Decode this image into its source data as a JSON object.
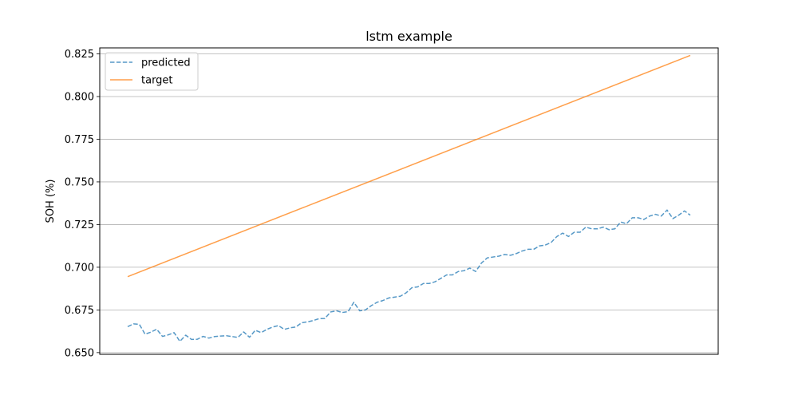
{
  "chart_data": {
    "type": "line",
    "title": "lstm example",
    "xlabel": "",
    "ylabel": "SOH (%)",
    "ylim": [
      0.649,
      0.8285
    ],
    "yticks": [
      0.65,
      0.675,
      0.7,
      0.725,
      0.75,
      0.775,
      0.8,
      0.825
    ],
    "ytick_labels": [
      "0.650",
      "0.675",
      "0.700",
      "0.725",
      "0.750",
      "0.775",
      "0.800",
      "0.825"
    ],
    "grid": "horizontal",
    "legend_position": "top-left",
    "series": [
      {
        "name": "predicted",
        "color": "#1f77b4",
        "style": "dashed",
        "values": [
          0.6652,
          0.6668,
          0.6666,
          0.6608,
          0.662,
          0.6637,
          0.6595,
          0.6604,
          0.6617,
          0.6566,
          0.6602,
          0.6577,
          0.6578,
          0.6595,
          0.6585,
          0.6594,
          0.6597,
          0.6599,
          0.6594,
          0.6589,
          0.6621,
          0.659,
          0.6631,
          0.6617,
          0.6636,
          0.665,
          0.6658,
          0.6636,
          0.6645,
          0.665,
          0.6675,
          0.668,
          0.6688,
          0.6699,
          0.67,
          0.6738,
          0.6745,
          0.6735,
          0.674,
          0.6795,
          0.6745,
          0.675,
          0.6775,
          0.6795,
          0.6805,
          0.682,
          0.6825,
          0.683,
          0.685,
          0.688,
          0.6885,
          0.6905,
          0.6905,
          0.6915,
          0.6935,
          0.6955,
          0.6955,
          0.6975,
          0.698,
          0.6995,
          0.6975,
          0.7025,
          0.7055,
          0.706,
          0.7065,
          0.7075,
          0.707,
          0.708,
          0.7095,
          0.7105,
          0.7105,
          0.7125,
          0.713,
          0.7145,
          0.718,
          0.72,
          0.718,
          0.7205,
          0.7205,
          0.7235,
          0.7225,
          0.7225,
          0.7235,
          0.722,
          0.7225,
          0.7265,
          0.7255,
          0.729,
          0.729,
          0.728,
          0.73,
          0.731,
          0.73,
          0.7335,
          0.7285,
          0.7305,
          0.733,
          0.7305
        ]
      },
      {
        "name": "target",
        "color": "#ff7f0e",
        "style": "solid",
        "values": [
          0.6945,
          0.8241
        ]
      }
    ]
  }
}
